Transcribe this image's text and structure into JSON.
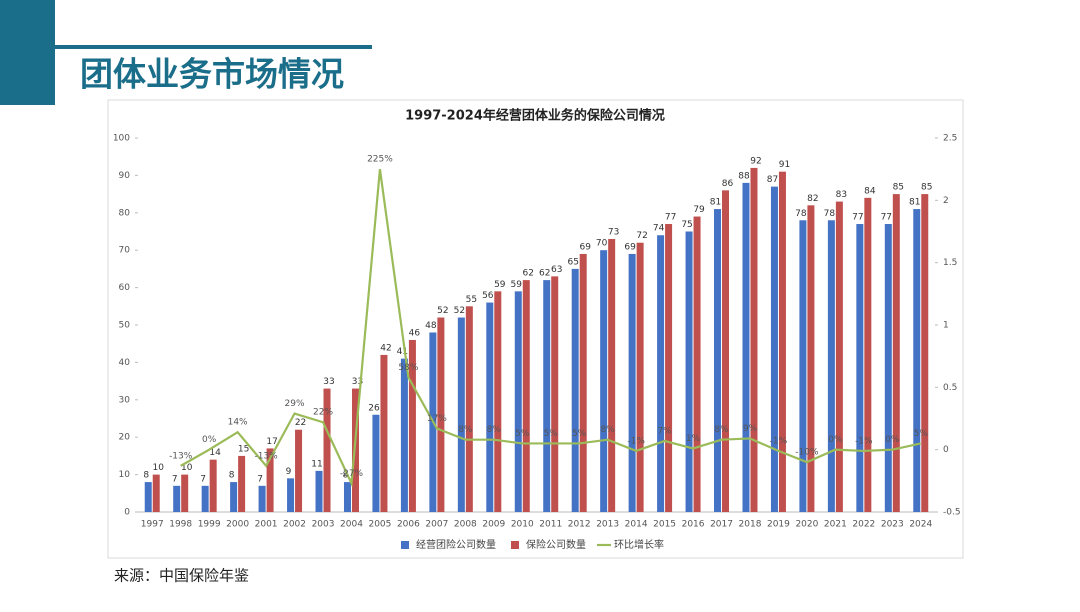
{
  "header": {
    "title": "团体业务市场情况"
  },
  "chart_data": {
    "type": "bar-line",
    "title": "1997-2024年经营团体业务的保险公司情况",
    "categories": [
      "1997",
      "1998",
      "1999",
      "2000",
      "2001",
      "2002",
      "2003",
      "2004",
      "2005",
      "2006",
      "2007",
      "2008",
      "2009",
      "2010",
      "2011",
      "2012",
      "2013",
      "2014",
      "2015",
      "2016",
      "2017",
      "2018",
      "2019",
      "2020",
      "2021",
      "2022",
      "2023",
      "2024"
    ],
    "series": [
      {
        "name": "经营团险公司数量",
        "color": "#4472c4",
        "type": "bar",
        "values": [
          8,
          7,
          7,
          8,
          7,
          9,
          11,
          8,
          26,
          41,
          48,
          52,
          56,
          59,
          62,
          65,
          70,
          69,
          74,
          75,
          81,
          88,
          87,
          78,
          78,
          77,
          77,
          81
        ]
      },
      {
        "name": "保险公司数量",
        "color": "#c0504d",
        "type": "bar",
        "values": [
          10,
          10,
          14,
          15,
          17,
          22,
          33,
          33,
          42,
          46,
          52,
          55,
          59,
          62,
          63,
          69,
          73,
          72,
          77,
          79,
          86,
          92,
          91,
          82,
          83,
          84,
          85,
          85
        ]
      },
      {
        "name": "环比增长率",
        "color": "#9bbb59",
        "type": "line",
        "axis": "y2",
        "values": [
          null,
          -0.13,
          0,
          0.14,
          -0.13,
          0.29,
          0.22,
          -0.27,
          2.25,
          0.58,
          0.17,
          0.08,
          0.08,
          0.05,
          0.05,
          0.05,
          0.08,
          -0.01,
          0.07,
          0.01,
          0.08,
          0.09,
          -0.01,
          -0.1,
          0,
          -0.01,
          0,
          0.05
        ],
        "value_labels": [
          null,
          "-13%",
          "0%",
          "14%",
          "-13%",
          "29%",
          "22%",
          "-27%",
          "225%",
          "58%",
          "17%",
          "8%",
          "8%",
          "5%",
          "5%",
          "5%",
          "8%",
          "-1%",
          "7%",
          "1%",
          "8%",
          "9%",
          "-1%",
          "-10%",
          "0%",
          "-1%",
          "0%",
          "5%"
        ]
      }
    ],
    "ylim": [
      0,
      100
    ],
    "yticks": [
      0,
      10,
      20,
      30,
      40,
      50,
      60,
      70,
      80,
      90,
      100
    ],
    "y2lim": [
      -0.5,
      2.5
    ],
    "y2ticks": [
      -0.5,
      0,
      0.5,
      1,
      1.5,
      2,
      2.5
    ],
    "legend": "bottom"
  },
  "footer": {
    "source": "来源：中国保险年鉴"
  }
}
